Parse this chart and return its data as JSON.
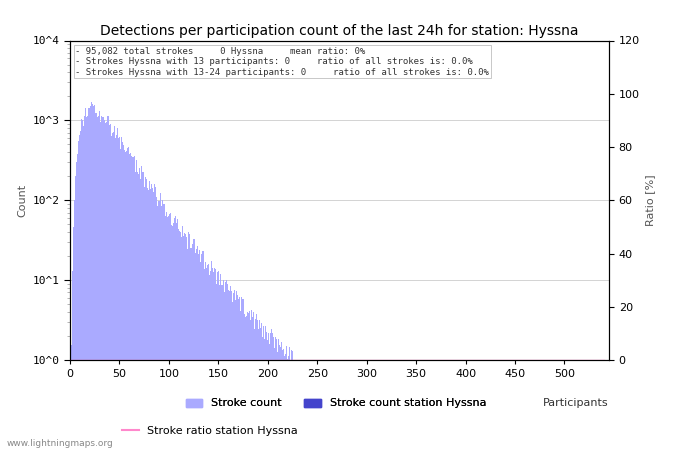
{
  "title": "Detections per participation count of the last 24h for station: Hyssna",
  "xlabel": "Participants",
  "ylabel_left": "Count",
  "ylabel_right": "Ratio [%]",
  "annotation_lines": [
    "95,082 total strokes     0 Hyssna     mean ratio: 0%",
    "Strokes Hyssna with 13 participants: 0     ratio of all strokes is: 0.0%",
    "Strokes Hyssna with 13-24 participants: 0     ratio of all strokes is: 0.0%"
  ],
  "xmax": 540,
  "ylog_min": 1,
  "ylog_max": 10000,
  "yright_min": 0,
  "yright_max": 120,
  "bar_color_main": "#aaaaff",
  "bar_color_station": "#4444cc",
  "ratio_line_color": "#ff88cc",
  "grid_color": "#cccccc",
  "background_color": "#ffffff",
  "title_fontsize": 10,
  "label_fontsize": 8,
  "tick_fontsize": 8,
  "watermark": "www.lightningmaps.org",
  "ytick_labels": [
    "10^0",
    "10^1",
    "10^2",
    "10^3",
    "10^4"
  ],
  "ytick_values": [
    1,
    10,
    100,
    1000,
    10000
  ]
}
